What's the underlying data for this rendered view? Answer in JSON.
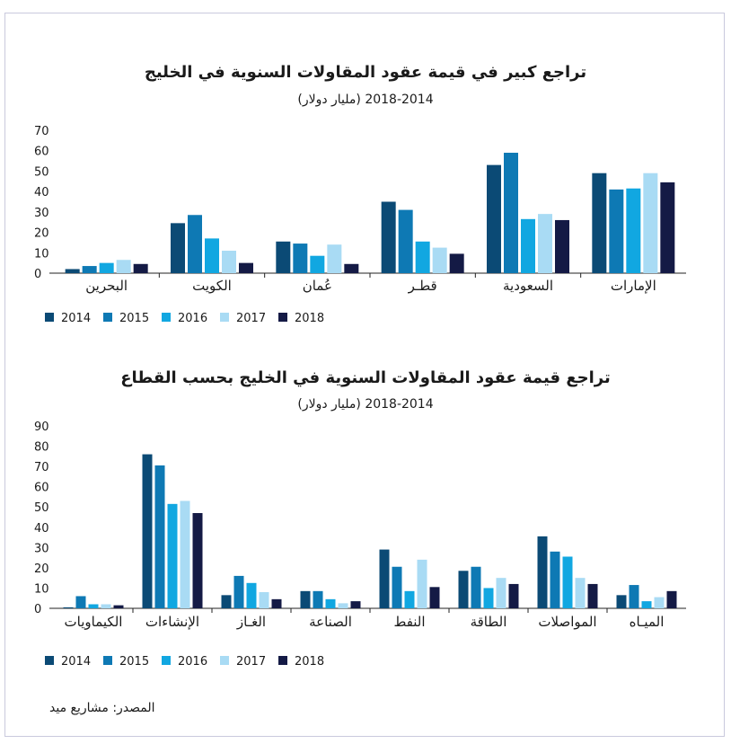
{
  "colors": {
    "2014": "#0b4a75",
    "2015": "#0e79b4",
    "2016": "#11a7e1",
    "2017": "#a9dbf4",
    "2018": "#141a45"
  },
  "chart_data": [
    {
      "type": "bar",
      "title": "تراجع كبير في قيمة عقود المقاولات السنوية في الخليج",
      "subtitle": "2018-2014 (مليار دولار)",
      "categories": [
        "البحرين",
        "الكويت",
        "عُمان",
        "قطـر",
        "السعودية",
        "الإمارات"
      ],
      "ylim": [
        0,
        70
      ],
      "yticks": [
        0,
        10,
        20,
        30,
        40,
        50,
        60,
        70
      ],
      "grid": false,
      "legend_position": "bottom-left",
      "series": [
        {
          "name": "2014",
          "color": "#0b4a75",
          "values": [
            2,
            24.5,
            15.5,
            35,
            53,
            49
          ]
        },
        {
          "name": "2015",
          "color": "#0e79b4",
          "values": [
            3.5,
            28.5,
            14.5,
            31,
            59,
            41
          ]
        },
        {
          "name": "2016",
          "color": "#11a7e1",
          "values": [
            5,
            17,
            8.5,
            15.5,
            26.5,
            41.5
          ]
        },
        {
          "name": "2017",
          "color": "#a9dbf4",
          "values": [
            6.5,
            11,
            14,
            12.5,
            29,
            49
          ]
        },
        {
          "name": "2018",
          "color": "#141a45",
          "values": [
            4.5,
            5,
            4.5,
            9.5,
            26,
            44.5
          ]
        }
      ]
    },
    {
      "type": "bar",
      "title": "تراجع قيمة عقود المقاولات السنوية في الخليج بحسب القطاع",
      "subtitle": "2018-2014 (مليار دولار)",
      "categories": [
        "الكيماويات",
        "الإنشاءات",
        "الغـاز",
        "الصناعة",
        "النفط",
        "الطاقة",
        "المواصلات",
        "الميـاه"
      ],
      "ylim": [
        0,
        90
      ],
      "yticks": [
        0,
        10,
        20,
        30,
        40,
        50,
        60,
        70,
        80,
        90
      ],
      "grid": false,
      "legend_position": "bottom-left",
      "series": [
        {
          "name": "2014",
          "color": "#0b4a75",
          "values": [
            0.5,
            76,
            6.5,
            8.5,
            29,
            18.5,
            35.5,
            6.5
          ]
        },
        {
          "name": "2015",
          "color": "#0e79b4",
          "values": [
            6,
            70.5,
            16,
            8.5,
            20.5,
            20.5,
            28,
            11.5
          ]
        },
        {
          "name": "2016",
          "color": "#11a7e1",
          "values": [
            2,
            51.5,
            12.5,
            4.5,
            8.5,
            10,
            25.5,
            3.5
          ]
        },
        {
          "name": "2017",
          "color": "#a9dbf4",
          "values": [
            2,
            53,
            8,
            2.5,
            24,
            15,
            15,
            5.5
          ]
        },
        {
          "name": "2018",
          "color": "#141a45",
          "values": [
            1.5,
            47,
            4.5,
            3.5,
            10.5,
            12,
            12,
            8.5
          ]
        }
      ]
    }
  ],
  "source": "المصدر: مشاريع ميد"
}
